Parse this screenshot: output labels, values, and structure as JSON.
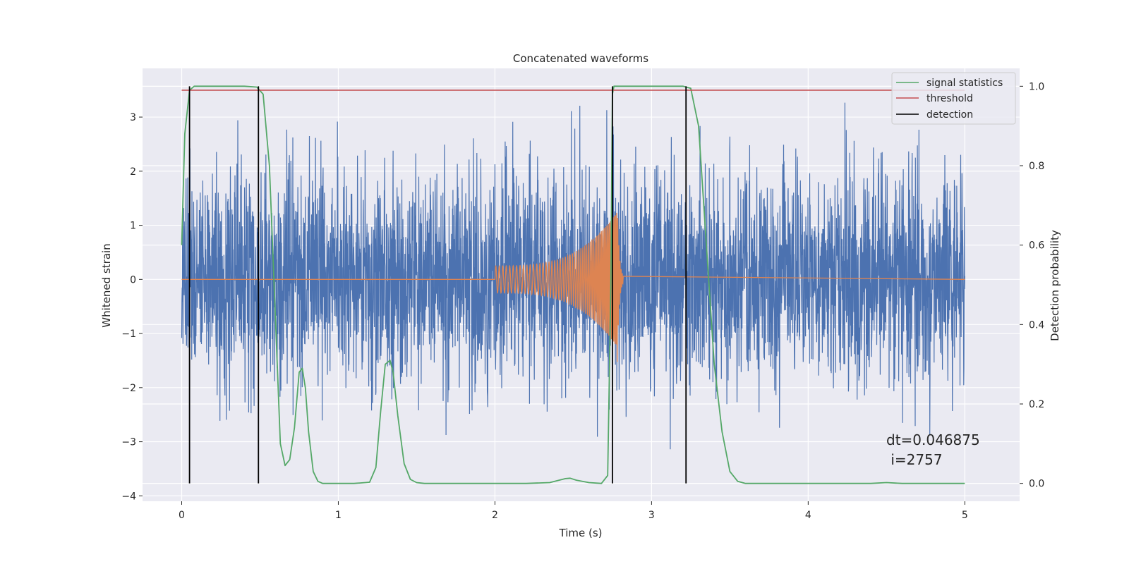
{
  "chart_data": {
    "type": "line",
    "title": "Concatenated waveforms",
    "xlabel": "Time (s)",
    "ylabel": "Whitened strain",
    "y2label": "Detection probability",
    "xlim": [
      -0.25,
      5.35
    ],
    "ylim": [
      -4.1,
      3.9
    ],
    "y2lim": [
      -0.045,
      1.045
    ],
    "xticks": [
      0,
      1,
      2,
      3,
      4,
      5
    ],
    "yticks": [
      -4,
      -3,
      -2,
      -1,
      0,
      1,
      2,
      3
    ],
    "y2ticks": [
      0.0,
      0.2,
      0.4,
      0.6,
      0.8,
      1.0
    ],
    "xtick_labels": [
      "0",
      "1",
      "2",
      "3",
      "4",
      "5"
    ],
    "ytick_labels": [
      "−4",
      "−3",
      "−2",
      "−1",
      "0",
      "1",
      "2",
      "3"
    ],
    "y2tick_labels": [
      "0.0",
      "0.2",
      "0.4",
      "0.6",
      "0.8",
      "1.0"
    ],
    "grid": true,
    "legend_position": "top-right",
    "legend": [
      {
        "label": "signal statistics",
        "color": "#55a868"
      },
      {
        "label": "threshold",
        "color": "#c44e52"
      },
      {
        "label": "detection",
        "color": "#000000"
      }
    ],
    "colors": {
      "noise": "#4c72b0",
      "injection": "#dd8452",
      "background": "#eaeaf2",
      "grid": "#ffffff"
    },
    "noise": {
      "x_range": [
        0,
        5
      ],
      "typical_amplitude": 1.0,
      "max_abs": 3.5
    },
    "injection": {
      "x_range": [
        2.0,
        2.82
      ],
      "start_amplitude": 0.25,
      "peak_amplitude": 1.25,
      "peak_time": 2.78
    },
    "series": [
      {
        "name": "signal statistics",
        "axis": "right",
        "x": [
          0.0,
          0.02,
          0.05,
          0.08,
          0.12,
          0.2,
          0.3,
          0.4,
          0.48,
          0.52,
          0.56,
          0.6,
          0.63,
          0.66,
          0.69,
          0.72,
          0.75,
          0.77,
          0.79,
          0.81,
          0.84,
          0.87,
          0.9,
          0.95,
          1.0,
          1.1,
          1.2,
          1.24,
          1.27,
          1.3,
          1.33,
          1.35,
          1.38,
          1.42,
          1.46,
          1.5,
          1.55,
          1.6,
          1.8,
          2.0,
          2.2,
          2.35,
          2.45,
          2.48,
          2.52,
          2.6,
          2.68,
          2.72,
          2.74,
          2.75,
          2.76,
          2.8,
          2.9,
          3.1,
          3.2,
          3.25,
          3.3,
          3.35,
          3.4,
          3.45,
          3.5,
          3.55,
          3.6,
          4.0,
          4.4,
          4.5,
          4.6,
          5.0
        ],
        "y": [
          0.6,
          0.88,
          0.99,
          1.0,
          1.0,
          1.0,
          1.0,
          1.0,
          0.998,
          0.98,
          0.8,
          0.4,
          0.1,
          0.045,
          0.06,
          0.14,
          0.28,
          0.29,
          0.24,
          0.13,
          0.03,
          0.005,
          0.0,
          0.0,
          0.0,
          0.0,
          0.003,
          0.04,
          0.18,
          0.3,
          0.31,
          0.28,
          0.17,
          0.05,
          0.01,
          0.002,
          0.0,
          0.0,
          0.0,
          0.0,
          0.0,
          0.002,
          0.012,
          0.013,
          0.008,
          0.002,
          0.0,
          0.02,
          0.5,
          0.98,
          1.0,
          1.0,
          1.0,
          1.0,
          1.0,
          0.995,
          0.9,
          0.6,
          0.3,
          0.13,
          0.03,
          0.005,
          0.0,
          0.0,
          0.0,
          0.002,
          0.0,
          0.0
        ]
      },
      {
        "name": "threshold",
        "axis": "right",
        "x": [
          0.0,
          5.0
        ],
        "y": [
          0.99,
          0.99
        ]
      }
    ],
    "detections": [
      0.05,
      0.49,
      2.75,
      3.22
    ],
    "annotations": [
      {
        "text": "dt=0.046875",
        "x": 4.5,
        "y": -3.3
      },
      {
        "text": " i=2757",
        "x": 4.5,
        "y": -3.65
      }
    ]
  }
}
